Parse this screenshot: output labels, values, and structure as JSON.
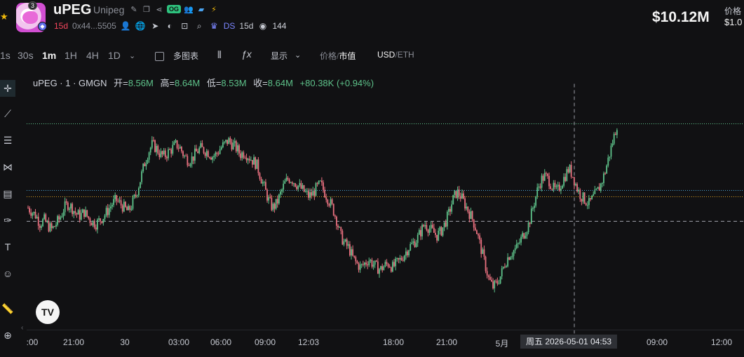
{
  "header": {
    "avatar_count": "3",
    "symbol": "uPEG",
    "name": "Unipeg",
    "og_badge": "OG",
    "age": "15d",
    "address": "0x44...5505",
    "ds_label": "DS",
    "ds_age": "15d",
    "views": "144",
    "price": "$10.12M",
    "price_label": "价格",
    "price_sub": "$1.0"
  },
  "toolbar": {
    "timeframes": [
      "1s",
      "30s",
      "1m",
      "1H",
      "4H",
      "1D"
    ],
    "active_timeframe": "1m",
    "multi_chart": "多图表",
    "display": "显示",
    "price_toggle": {
      "off": "价格",
      "sep": "/",
      "on": "市值"
    },
    "currency_toggle": {
      "on": "USD",
      "sep": "/",
      "off": "ETH"
    }
  },
  "legend": {
    "symbol": "uPEG · 1 · GMGN",
    "open_k": "开=",
    "open_v": "8.56M",
    "high_k": "高=",
    "high_v": "8.64M",
    "low_k": "低=",
    "low_v": "8.53M",
    "close_k": "收=",
    "close_v": "8.64M",
    "change": "+80.38K (+0.94%)"
  },
  "x_axis": {
    "ticks": [
      ":00",
      "21:00",
      "30",
      "03:00",
      "06:00",
      "09:00",
      "12:03",
      "18:00",
      "21:00",
      "5月",
      "09:00",
      "12:00"
    ],
    "crosshair_label": "周五 2026-05-01   04:53"
  },
  "colors": {
    "up": "#5ec28a",
    "down": "#e9707f",
    "background": "#111113",
    "crosshair": "#9a9da6",
    "level_green": "#5ec28a",
    "level_blue": "#4aa3d6",
    "level_orange": "#d99a1e"
  },
  "chart_data": {
    "type": "candlestick",
    "series_path": [
      0.58,
      0.56,
      0.54,
      0.5,
      0.52,
      0.49,
      0.47,
      0.5,
      0.53,
      0.58,
      0.6,
      0.58,
      0.55,
      0.54,
      0.56,
      0.53,
      0.51,
      0.5,
      0.52,
      0.54,
      0.57,
      0.6,
      0.62,
      0.6,
      0.58,
      0.56,
      0.6,
      0.65,
      0.72,
      0.8,
      0.86,
      0.9,
      0.88,
      0.85,
      0.84,
      0.86,
      0.88,
      0.9,
      0.88,
      0.84,
      0.82,
      0.83,
      0.86,
      0.88,
      0.87,
      0.86,
      0.84,
      0.85,
      0.88,
      0.9,
      0.92,
      0.9,
      0.88,
      0.85,
      0.86,
      0.84,
      0.82,
      0.8,
      0.74,
      0.68,
      0.62,
      0.58,
      0.6,
      0.65,
      0.7,
      0.73,
      0.72,
      0.7,
      0.68,
      0.66,
      0.64,
      0.65,
      0.68,
      0.7,
      0.66,
      0.62,
      0.58,
      0.52,
      0.44,
      0.4,
      0.38,
      0.33,
      0.3,
      0.28,
      0.3,
      0.32,
      0.3,
      0.28,
      0.27,
      0.29,
      0.3,
      0.28,
      0.3,
      0.32,
      0.35,
      0.38,
      0.4,
      0.42,
      0.46,
      0.5,
      0.48,
      0.46,
      0.44,
      0.46,
      0.5,
      0.55,
      0.62,
      0.66,
      0.64,
      0.6,
      0.56,
      0.52,
      0.46,
      0.38,
      0.3,
      0.22,
      0.18,
      0.2,
      0.24,
      0.3,
      0.34,
      0.36,
      0.38,
      0.42,
      0.46,
      0.5,
      0.58,
      0.66,
      0.72,
      0.74,
      0.72,
      0.68,
      0.66,
      0.7,
      0.74,
      0.78,
      0.74,
      0.68,
      0.64,
      0.62,
      0.6,
      0.63,
      0.66,
      0.7,
      0.76,
      0.84,
      0.92,
      1.0
    ]
  }
}
